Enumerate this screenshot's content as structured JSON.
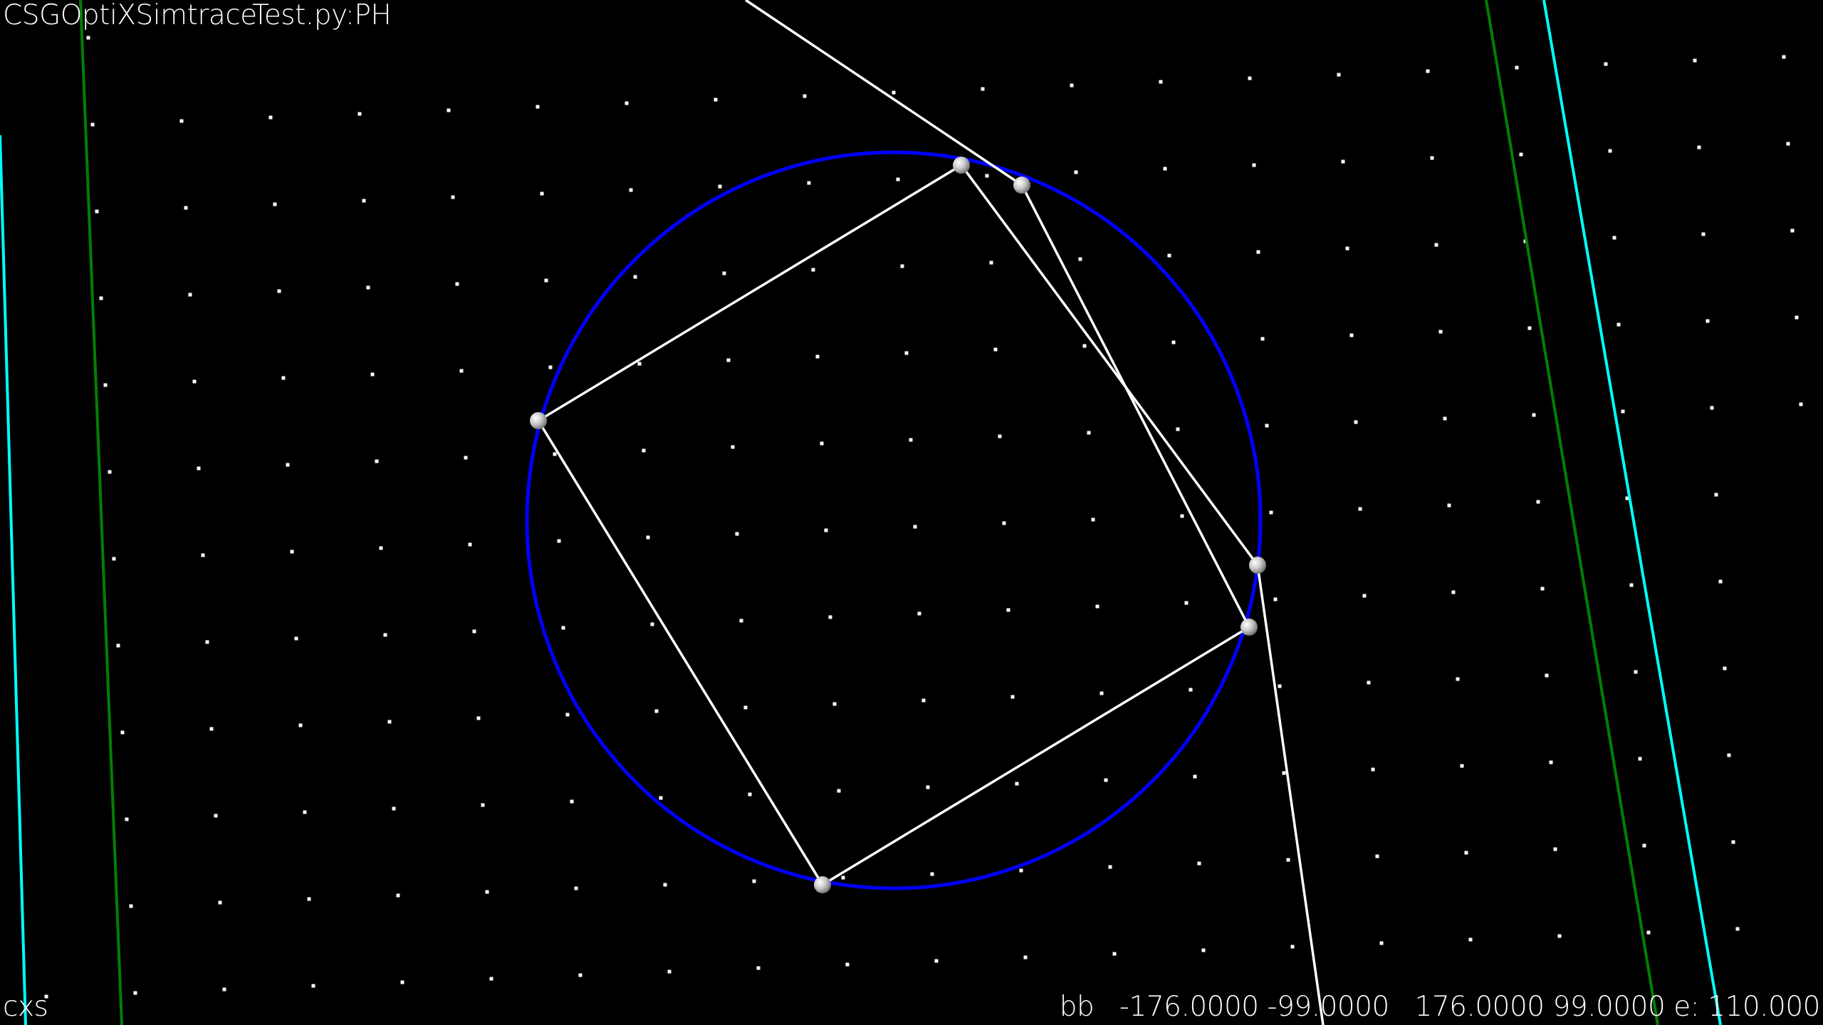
{
  "window": {
    "title": "CSGOptiXSimtraceTest.py:PH"
  },
  "footer": {
    "frame_label": "cxs",
    "bbox_readout": "bb   -176.0000 -99.0000   176.0000 99.0000 e: 110.000"
  },
  "colors": {
    "background": "#000000",
    "circle": "#0000ff",
    "rays": "#ffffff",
    "grid_points": "#ffffff",
    "green_lines": "#008000",
    "cyan_lines": "#00ffff",
    "intersection_markers": "#d8d8d8"
  }
}
